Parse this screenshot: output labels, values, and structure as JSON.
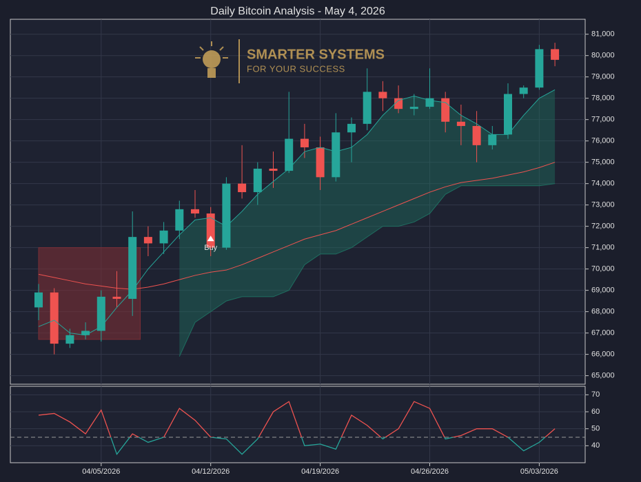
{
  "chart_data": {
    "type": "candlestick",
    "title": "Daily Bitcoin Analysis - May 4, 2026",
    "watermark": {
      "line1": "SMARTER SYSTEMS",
      "line2": "FOR YOUR SUCCESS"
    },
    "x": [
      "04/01/2026",
      "04/02/2026",
      "04/03/2026",
      "04/04/2026",
      "04/05/2026",
      "04/06/2026",
      "04/07/2026",
      "04/08/2026",
      "04/09/2026",
      "04/10/2026",
      "04/11/2026",
      "04/12/2026",
      "04/13/2026",
      "04/14/2026",
      "04/15/2026",
      "04/16/2026",
      "04/17/2026",
      "04/18/2026",
      "04/19/2026",
      "04/20/2026",
      "04/21/2026",
      "04/22/2026",
      "04/23/2026",
      "04/24/2026",
      "04/25/2026",
      "04/26/2026",
      "04/27/2026",
      "04/28/2026",
      "04/29/2026",
      "04/30/2026",
      "05/01/2026",
      "05/02/2026",
      "05/03/2026",
      "05/04/2026"
    ],
    "open": [
      68200,
      68900,
      66500,
      66900,
      67100,
      68700,
      68600,
      71500,
      71200,
      71800,
      72800,
      72600,
      71000,
      74000,
      73600,
      74700,
      74600,
      76100,
      75700,
      74300,
      76400,
      76800,
      78300,
      78000,
      77500,
      77600,
      78000,
      76900,
      76700,
      75800,
      76300,
      78200,
      78500,
      80300
    ],
    "high": [
      69300,
      69100,
      67200,
      67500,
      69000,
      69900,
      72700,
      72000,
      72200,
      73200,
      73700,
      72900,
      74300,
      75800,
      75000,
      75500,
      78300,
      76800,
      76200,
      77300,
      77100,
      79400,
      78800,
      78600,
      78200,
      79400,
      78300,
      77700,
      77400,
      76700,
      78700,
      78600,
      80500,
      80600
    ],
    "low": [
      67600,
      66000,
      66300,
      66700,
      66600,
      68200,
      67800,
      70600,
      70700,
      71400,
      72400,
      70600,
      70900,
      73300,
      73000,
      73800,
      74500,
      75200,
      73700,
      74100,
      75000,
      76500,
      77400,
      77300,
      77200,
      77500,
      76400,
      75800,
      75000,
      75600,
      76100,
      78000,
      78400,
      79500
    ],
    "close": [
      68900,
      66500,
      66900,
      67100,
      68700,
      68600,
      71500,
      71200,
      71800,
      72800,
      72600,
      71000,
      74000,
      73600,
      74700,
      74600,
      76100,
      75700,
      74300,
      76400,
      76800,
      78300,
      78000,
      77500,
      77600,
      78000,
      76900,
      76700,
      75800,
      76300,
      78200,
      78500,
      80300,
      79800
    ],
    "up_color": "#26a69a",
    "down_color": "#ef5350",
    "ma_fast": {
      "color": "#26a69a",
      "values": [
        67300,
        67600,
        67000,
        66900,
        67300,
        68200,
        69000,
        70000,
        70800,
        71600,
        72300,
        72400,
        72000,
        72700,
        73500,
        74100,
        74700,
        75500,
        75700,
        75500,
        75700,
        76300,
        77200,
        77900,
        78100,
        77900,
        77800,
        77200,
        76800,
        76300,
        76300,
        77200,
        78000,
        78400
      ]
    },
    "ma_slow": {
      "color": "#ef5350",
      "values": [
        69750,
        69600,
        69450,
        69300,
        69200,
        69100,
        69050,
        69150,
        69300,
        69500,
        69700,
        69850,
        69950,
        70200,
        70500,
        70800,
        71100,
        71400,
        71600,
        71800,
        72100,
        72400,
        72700,
        73000,
        73300,
        73600,
        73850,
        74050,
        74150,
        74250,
        74400,
        74550,
        74750,
        75000
      ]
    },
    "trailing_stop": {
      "color": "#1f6e60",
      "values": [
        null,
        null,
        null,
        null,
        null,
        null,
        null,
        null,
        null,
        65900,
        67500,
        68000,
        68500,
        68700,
        68700,
        68700,
        69000,
        70200,
        70700,
        70700,
        71000,
        71500,
        72000,
        72000,
        72200,
        72600,
        73500,
        73900,
        73900,
        73900,
        73900,
        73900,
        73900,
        74000
      ]
    },
    "zones": [
      {
        "start": "04/01/2026",
        "end": "04/07/2026",
        "low": 66700,
        "high": 71000,
        "color": "#7a2e36"
      }
    ],
    "annotations": [
      {
        "text": "Buy",
        "x": "04/12/2026",
        "y": 71400
      }
    ],
    "ylim": [
      64600,
      81700
    ],
    "yticks": [
      {
        "value": 65000,
        "label": "65,000"
      },
      {
        "value": 66000,
        "label": "66,000"
      },
      {
        "value": 67000,
        "label": "67,000"
      },
      {
        "value": 68000,
        "label": "68,000"
      },
      {
        "value": 69000,
        "label": "69,000"
      },
      {
        "value": 70000,
        "label": "70,000"
      },
      {
        "value": 71000,
        "label": "71,000"
      },
      {
        "value": 72000,
        "label": "72,000"
      },
      {
        "value": 73000,
        "label": "73,000"
      },
      {
        "value": 74000,
        "label": "74,000"
      },
      {
        "value": 75000,
        "label": "75,000"
      },
      {
        "value": 76000,
        "label": "76,000"
      },
      {
        "value": 77000,
        "label": "77,000"
      },
      {
        "value": 78000,
        "label": "78,000"
      },
      {
        "value": 79000,
        "label": "79,000"
      },
      {
        "value": 80000,
        "label": "80,000"
      },
      {
        "value": 81000,
        "label": "81,000"
      }
    ],
    "xticks": [
      "04/05/2026",
      "04/12/2026",
      "04/19/2026",
      "04/26/2026",
      "05/03/2026"
    ],
    "grid": true,
    "rsi": {
      "values": [
        58,
        59,
        54,
        47,
        61,
        35,
        47,
        42,
        45,
        62,
        55,
        45,
        44,
        35,
        44,
        60,
        66,
        40,
        41,
        38,
        58,
        52,
        44,
        50,
        66,
        62,
        44,
        46,
        50,
        50,
        45,
        37,
        42,
        50
      ],
      "up_color": "#ef5350",
      "down_color": "#26a69a",
      "threshold": 45,
      "ylim": [
        30,
        75
      ],
      "yticks": [
        40,
        50,
        60,
        70
      ]
    }
  }
}
